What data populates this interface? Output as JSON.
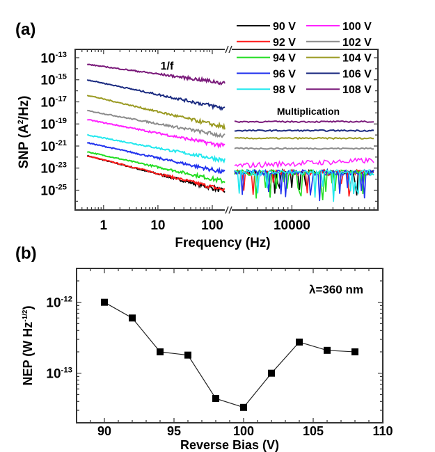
{
  "chart_data": [
    {
      "panel_label": "(a)",
      "type": "line",
      "xlabel": "Frequency (Hz)",
      "ylabel": {
        "text": "SNP (A",
        "sup": "2",
        "tail": "/Hz)"
      },
      "yscale": "log",
      "ylim": [
        1.6e-27,
        5.7e-13
      ],
      "x_segments": [
        {
          "xlim": [
            0.3,
            170
          ],
          "scale": "log",
          "ticks": [
            "1",
            "10",
            "100"
          ],
          "tick_values": [
            1,
            10,
            100
          ],
          "annotation": "1/f"
        },
        {
          "xlim": [
            2000,
            100000
          ],
          "scale": "log",
          "ticks": [
            "10000"
          ],
          "tick_values": [
            10000
          ],
          "annotation": "Multiplication"
        }
      ],
      "y_ticks": [
        {
          "base": "10",
          "exp": "-13",
          "value": -13
        },
        {
          "base": "10",
          "exp": "-15",
          "value": -15
        },
        {
          "base": "10",
          "exp": "-17",
          "value": -17
        },
        {
          "base": "10",
          "exp": "-19",
          "value": -19
        },
        {
          "base": "10",
          "exp": "-21",
          "value": -21
        },
        {
          "base": "10",
          "exp": "-23",
          "value": -23
        },
        {
          "base": "10",
          "exp": "-25",
          "value": -25
        }
      ],
      "legend_position": "top-right",
      "series": [
        {
          "name": "90 V",
          "color": "#000000",
          "snp_at_0_5Hz": 1.3e-22,
          "snp_at_170Hz": 8e-26,
          "multiplication_level": 4e-24
        },
        {
          "name": "92 V",
          "color": "#ff1a1a",
          "snp_at_0_5Hz": 1.3e-22,
          "snp_at_170Hz": 1e-25,
          "multiplication_level": 4e-24
        },
        {
          "name": "94 V",
          "color": "#22dd22",
          "snp_at_0_5Hz": 3e-22,
          "snp_at_170Hz": 6e-25,
          "multiplication_level": 4e-24
        },
        {
          "name": "96 V",
          "color": "#2233ee",
          "snp_at_0_5Hz": 2e-21,
          "snp_at_170Hz": 4e-24,
          "multiplication_level": 4e-24
        },
        {
          "name": "98 V",
          "color": "#22e8ee",
          "snp_at_0_5Hz": 1e-20,
          "snp_at_170Hz": 5e-23,
          "multiplication_level": 4e-24
        },
        {
          "name": "100 V",
          "color": "#ff22ff",
          "snp_at_0_5Hz": 2.5e-19,
          "snp_at_170Hz": 1e-21,
          "multiplication_level": 1.6e-23
        },
        {
          "name": "102 V",
          "color": "#8c8c8c",
          "snp_at_0_5Hz": 1.6e-18,
          "snp_at_170Hz": 8e-21,
          "multiplication_level": 6e-22
        },
        {
          "name": "104 V",
          "color": "#9a9a22",
          "snp_at_0_5Hz": 4e-17,
          "snp_at_170Hz": 5e-20,
          "multiplication_level": 5e-21
        },
        {
          "name": "106 V",
          "color": "#1a2a80",
          "snp_at_0_5Hz": 1e-15,
          "snp_at_170Hz": 2.5e-18,
          "multiplication_level": 2.5e-20
        },
        {
          "name": "108 V",
          "color": "#7a1a7a",
          "snp_at_0_5Hz": 2.5e-14,
          "snp_at_170Hz": 5e-16,
          "multiplication_level": 1.6e-19
        }
      ]
    },
    {
      "panel_label": "(b)",
      "type": "line",
      "markers": "square",
      "xlabel": "Reverse Bias (V)",
      "ylabel": {
        "text": "NEP (W Hz",
        "sup": "-1/2",
        "tail": ")"
      },
      "annotation": "λ=360 nm",
      "xlim": [
        88,
        110
      ],
      "yscale": "log",
      "ylim": [
        2e-14,
        3e-12
      ],
      "x_ticks": [
        "90",
        "95",
        "100",
        "105",
        "110"
      ],
      "x_tick_values": [
        90,
        95,
        100,
        105,
        110
      ],
      "y_ticks": [
        {
          "base": "10",
          "exp": "-12",
          "value": -12
        },
        {
          "base": "10",
          "exp": "-13",
          "value": -13
        }
      ],
      "x": [
        90,
        92,
        94,
        96,
        98,
        100,
        102,
        104,
        106,
        108
      ],
      "y": [
        1e-12,
        6e-13,
        2e-13,
        1.8e-13,
        4.4e-14,
        3.3e-14,
        1e-13,
        2.75e-13,
        2.1e-13,
        2e-13
      ]
    }
  ]
}
